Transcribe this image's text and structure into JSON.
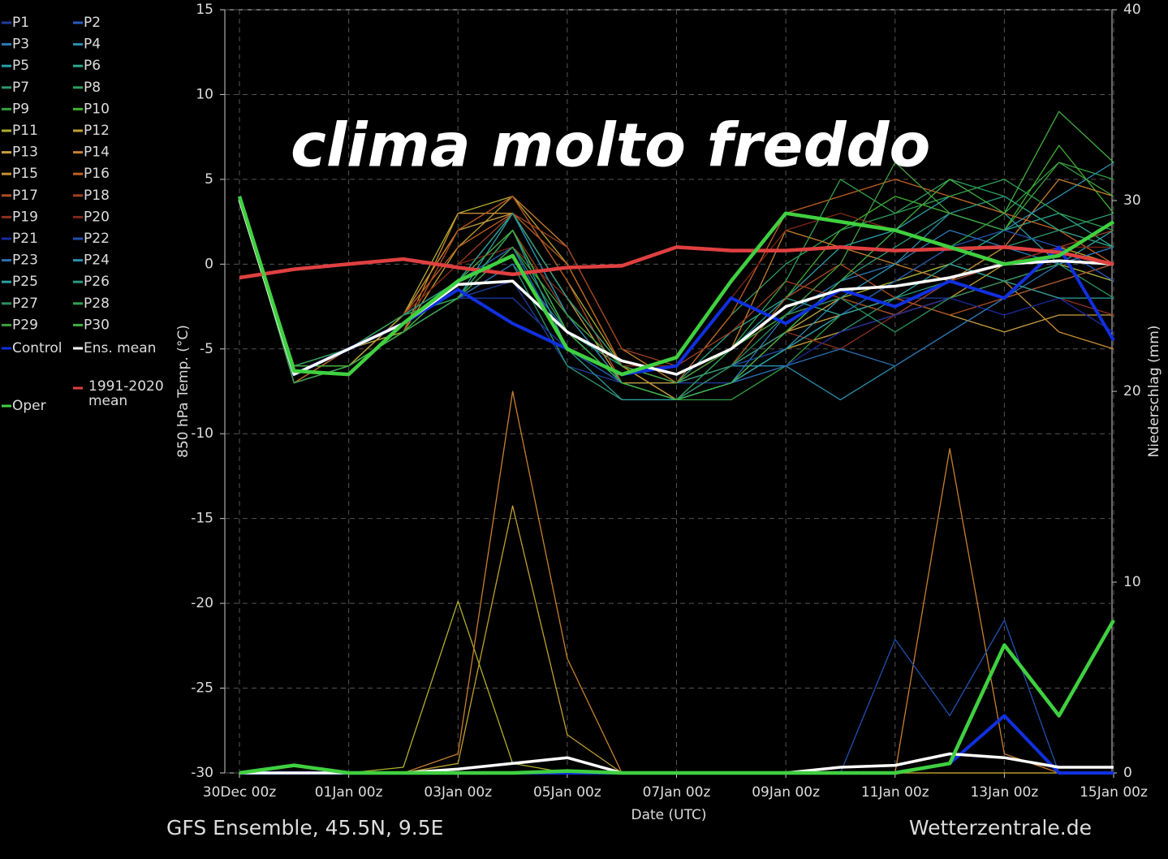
{
  "chart_data": {
    "type": "line",
    "title": "clima molto freddo",
    "footer_left": "GFS Ensemble, 45.5N, 9.5E",
    "footer_right": "Wetterzentrale.de",
    "x_label": "Date (UTC)",
    "y_label": "850 hPa Temp. (°C)",
    "y2_label": "Niederschlag (mm)",
    "categories": [
      "30Dec 00z",
      null,
      "01Jan 00z",
      null,
      "03Jan 00z",
      null,
      "05Jan 00z",
      null,
      "07Jan 00z",
      null,
      "09Jan 00z",
      null,
      "11Jan 00z",
      null,
      "13Jan 00z",
      null,
      "15Jan 00z"
    ],
    "ylim": [
      -30,
      15
    ],
    "yticks": [
      -30,
      -25,
      -20,
      -15,
      -10,
      -5,
      0,
      5,
      10,
      15
    ],
    "y2lim": [
      0,
      40
    ],
    "y2ticks": [
      0,
      10,
      20,
      30,
      40
    ],
    "grid": true,
    "series": [
      {
        "name": "P1",
        "color": "#1f3fa0",
        "values": [
          4,
          -7,
          -5,
          -4,
          -2,
          -1,
          -6,
          -7,
          -7,
          -7,
          -5,
          -3,
          -2,
          -2,
          -1,
          0,
          -1
        ]
      },
      {
        "name": "P2",
        "color": "#2a5cc0",
        "values": [
          4,
          -6,
          -5,
          -3,
          -2,
          2,
          -4,
          -7,
          -8,
          -6,
          -4,
          -2,
          -3,
          -1,
          0,
          1,
          -1
        ]
      },
      {
        "name": "P3",
        "color": "#2a7ab8",
        "values": [
          4,
          -7,
          -6,
          -4,
          -1,
          3,
          -2,
          -6,
          -8,
          -7,
          -3,
          -1,
          0,
          2,
          1,
          0,
          1
        ]
      },
      {
        "name": "P4",
        "color": "#2a8fb0",
        "values": [
          4,
          -6,
          -5,
          -3,
          -2,
          1,
          -5,
          -7,
          -8,
          -6,
          -6,
          -8,
          -6,
          -4,
          -2,
          -1,
          0
        ]
      },
      {
        "name": "P5",
        "color": "#2aa0a8",
        "values": [
          4,
          -7,
          -6,
          -4,
          -2,
          3,
          -3,
          -7,
          -8,
          -5,
          -2,
          1,
          2,
          4,
          3,
          0,
          2
        ]
      },
      {
        "name": "P6",
        "color": "#2aa890",
        "values": [
          4,
          -7,
          -5,
          -3,
          -2,
          2,
          -4,
          -6,
          -7,
          -4,
          -2,
          -3,
          -1,
          0,
          2,
          3,
          1
        ]
      },
      {
        "name": "P7",
        "color": "#2a9a70",
        "values": [
          4,
          -7,
          -6,
          -4,
          -2,
          0,
          -6,
          -8,
          -8,
          -7,
          -5,
          -4,
          -2,
          -1,
          1,
          2,
          3
        ]
      },
      {
        "name": "P8",
        "color": "#2aa060",
        "values": [
          4,
          -6,
          -6,
          -3,
          -1,
          1,
          -5,
          -7,
          -7,
          -3,
          0,
          2,
          3,
          5,
          4,
          2,
          1
        ]
      },
      {
        "name": "P9",
        "color": "#30a040",
        "values": [
          4,
          -7,
          -5,
          -4,
          -2,
          -2,
          -5,
          -7,
          -8,
          -8,
          -6,
          -3,
          -1,
          1,
          3,
          6,
          5
        ]
      },
      {
        "name": "P10",
        "color": "#40b030",
        "values": [
          4,
          -6,
          -6,
          -4,
          -2,
          2,
          -3,
          -6,
          -8,
          -6,
          -2,
          2,
          4,
          3,
          2,
          7,
          3
        ]
      },
      {
        "name": "P11",
        "color": "#b0b030",
        "values": [
          4,
          -7,
          -6,
          -3,
          3,
          4,
          -1,
          -6,
          -7,
          -5,
          -3,
          -2,
          -1,
          0,
          -1,
          0,
          -1
        ],
        "precip": [
          0,
          0,
          0,
          0.3,
          9,
          0.5,
          0,
          0,
          0,
          0,
          0,
          0,
          0,
          0,
          0,
          0,
          0
        ]
      },
      {
        "name": "P12",
        "color": "#c0a030",
        "values": [
          4,
          -6,
          -5,
          -4,
          1,
          4,
          0,
          -6,
          -8,
          -7,
          -4,
          -2,
          -3,
          -2,
          0,
          1,
          0
        ],
        "precip": [
          0,
          0,
          0,
          0,
          0.5,
          14,
          2,
          0,
          0,
          0,
          0,
          0,
          0,
          0,
          0,
          0,
          0
        ]
      },
      {
        "name": "P13",
        "color": "#c8a040",
        "values": [
          4,
          -7,
          -6,
          -3,
          2,
          3,
          -2,
          -7,
          -7,
          -6,
          -4,
          -3,
          -2,
          -3,
          -4,
          -3,
          -3
        ]
      },
      {
        "name": "P14",
        "color": "#c88030",
        "values": [
          4,
          -7,
          -5,
          -3,
          2,
          4,
          1,
          -5,
          -7,
          -5,
          2,
          1,
          0,
          -1,
          1,
          5,
          4
        ],
        "precip": [
          0,
          0,
          0,
          0,
          1,
          20,
          6,
          0,
          0,
          0,
          0,
          0,
          0,
          17,
          1,
          0,
          0
        ]
      },
      {
        "name": "P15",
        "color": "#c89030",
        "values": [
          4,
          -6,
          -6,
          -4,
          3,
          3,
          -2,
          -6,
          -8,
          -7,
          -5,
          -4,
          -3,
          -2,
          -1,
          -4,
          -5
        ]
      },
      {
        "name": "P16",
        "color": "#c06020",
        "values": [
          4,
          -7,
          -5,
          -3,
          1,
          3,
          0,
          -6,
          -7,
          -3,
          3,
          4,
          5,
          4,
          3,
          2,
          0
        ]
      },
      {
        "name": "P17",
        "color": "#b05020",
        "values": [
          4,
          -7,
          -6,
          -4,
          2,
          4,
          -1,
          -7,
          -8,
          -6,
          -2,
          0,
          -2,
          -3,
          -2,
          -1,
          0
        ]
      },
      {
        "name": "P18",
        "color": "#a04020",
        "values": [
          4,
          -6,
          -5,
          -3,
          0,
          3,
          1,
          -5,
          -6,
          -4,
          -1,
          -2,
          -3,
          -1,
          0,
          1,
          2
        ]
      },
      {
        "name": "P19",
        "color": "#903020",
        "values": [
          4,
          -7,
          -6,
          -4,
          -1,
          2,
          -3,
          -7,
          -8,
          -6,
          -4,
          -5,
          -3,
          -2,
          -1,
          -2,
          -3
        ]
      },
      {
        "name": "P20",
        "color": "#802818",
        "values": [
          4,
          -6,
          -5,
          -3,
          0,
          1,
          -2,
          -6,
          -6,
          -2,
          2,
          3,
          2,
          1,
          0,
          1,
          1
        ]
      },
      {
        "name": "P21",
        "color": "#1a2aa0",
        "values": [
          4,
          -7,
          -6,
          -4,
          -2,
          -2,
          -5,
          -7,
          -8,
          -7,
          -6,
          -4,
          -3,
          -2,
          -3,
          -2,
          -4
        ]
      },
      {
        "name": "P22",
        "color": "#2050b0",
        "values": [
          4,
          -6,
          -5,
          -3,
          -1,
          1,
          -5,
          -7,
          -8,
          -6,
          -5,
          -3,
          -1,
          1,
          2,
          1,
          -1
        ],
        "precip": [
          0,
          0,
          0,
          0,
          0,
          0,
          0,
          0,
          0,
          0,
          0,
          0,
          7,
          3,
          8,
          0,
          0
        ]
      },
      {
        "name": "P23",
        "color": "#2a70b0",
        "values": [
          4,
          -7,
          -6,
          -4,
          -2,
          0,
          -4,
          -7,
          -8,
          -7,
          -6,
          -5,
          -6,
          -4,
          -2,
          0,
          1
        ]
      },
      {
        "name": "P24",
        "color": "#2a90b0",
        "values": [
          4,
          -6,
          -5,
          -3,
          -1,
          3,
          -3,
          -7,
          -8,
          -7,
          -5,
          -2,
          0,
          3,
          2,
          4,
          6
        ]
      },
      {
        "name": "P25",
        "color": "#2aa0a0",
        "values": [
          4,
          -7,
          -6,
          -4,
          -2,
          2,
          -5,
          -8,
          -8,
          -7,
          -5,
          -3,
          -2,
          0,
          -1,
          -2,
          -2
        ]
      },
      {
        "name": "P26",
        "color": "#2a9a80",
        "values": [
          4,
          -6,
          -5,
          -3,
          -1,
          3,
          -2,
          -6,
          -7,
          -6,
          -4,
          -1,
          1,
          3,
          4,
          2,
          1
        ]
      },
      {
        "name": "P27",
        "color": "#2a9060",
        "values": [
          4,
          -7,
          -6,
          -4,
          -2,
          1,
          -4,
          -7,
          -8,
          -6,
          -3,
          -2,
          -4,
          -2,
          -1,
          0,
          -2
        ]
      },
      {
        "name": "P28",
        "color": "#30a050",
        "values": [
          4,
          -6,
          -5,
          -3,
          -2,
          2,
          -4,
          -7,
          -8,
          -5,
          -1,
          5,
          3,
          4,
          5,
          3,
          2
        ]
      },
      {
        "name": "P29",
        "color": "#40a040",
        "values": [
          4,
          -7,
          -6,
          -4,
          -2,
          1,
          -3,
          -6,
          -7,
          -5,
          -3,
          0,
          6,
          3,
          2,
          6,
          4
        ]
      },
      {
        "name": "P30",
        "color": "#40b040",
        "values": [
          4,
          -6,
          -6,
          -4,
          -1,
          2,
          -4,
          -7,
          -8,
          -7,
          -4,
          -1,
          2,
          5,
          3,
          9,
          6
        ]
      },
      {
        "name": "Control",
        "color": "#1030e0",
        "values": [
          4,
          -6.5,
          -5,
          -3.5,
          -1.5,
          -3.5,
          -5,
          -6.5,
          -6,
          -2,
          -3.5,
          -1.5,
          -2.5,
          -1,
          -2,
          1,
          -4.5
        ],
        "precip": [
          0,
          0,
          0,
          0,
          0,
          0,
          0,
          0,
          0,
          0,
          0,
          0,
          0,
          0.5,
          3,
          0,
          0
        ]
      },
      {
        "name": "Ens. mean",
        "color": "#ffffff",
        "values": [
          3.8,
          -6.5,
          -5,
          -3.5,
          -1.2,
          -1,
          -4,
          -5.7,
          -6.5,
          -5,
          -2.5,
          -1.5,
          -1.3,
          -0.8,
          0,
          0.2,
          0
        ],
        "precip": [
          0,
          0,
          0,
          0,
          0.2,
          0.5,
          0.8,
          0,
          0,
          0,
          0,
          0.3,
          0.4,
          1,
          0.8,
          0.3,
          0.3
        ]
      },
      {
        "name": "1991-2020 mean",
        "color": "#e04040",
        "values": [
          -0.8,
          -0.3,
          0,
          0.3,
          -0.2,
          -0.6,
          -0.2,
          -0.1,
          1,
          0.8,
          0.8,
          1,
          0.8,
          0.9,
          1,
          0.7,
          0
        ]
      },
      {
        "name": "Oper",
        "color": "#40d040",
        "values": [
          4,
          -6.3,
          -6.5,
          -3.5,
          -1,
          0.5,
          -5,
          -6.5,
          -5.5,
          -1,
          3,
          2.5,
          2,
          1,
          0,
          0.5,
          2.5
        ],
        "precip": [
          0,
          0.4,
          0,
          0,
          0,
          0,
          0.1,
          0,
          0,
          0,
          0,
          0,
          0,
          0.5,
          6.7,
          3,
          8
        ]
      }
    ]
  }
}
